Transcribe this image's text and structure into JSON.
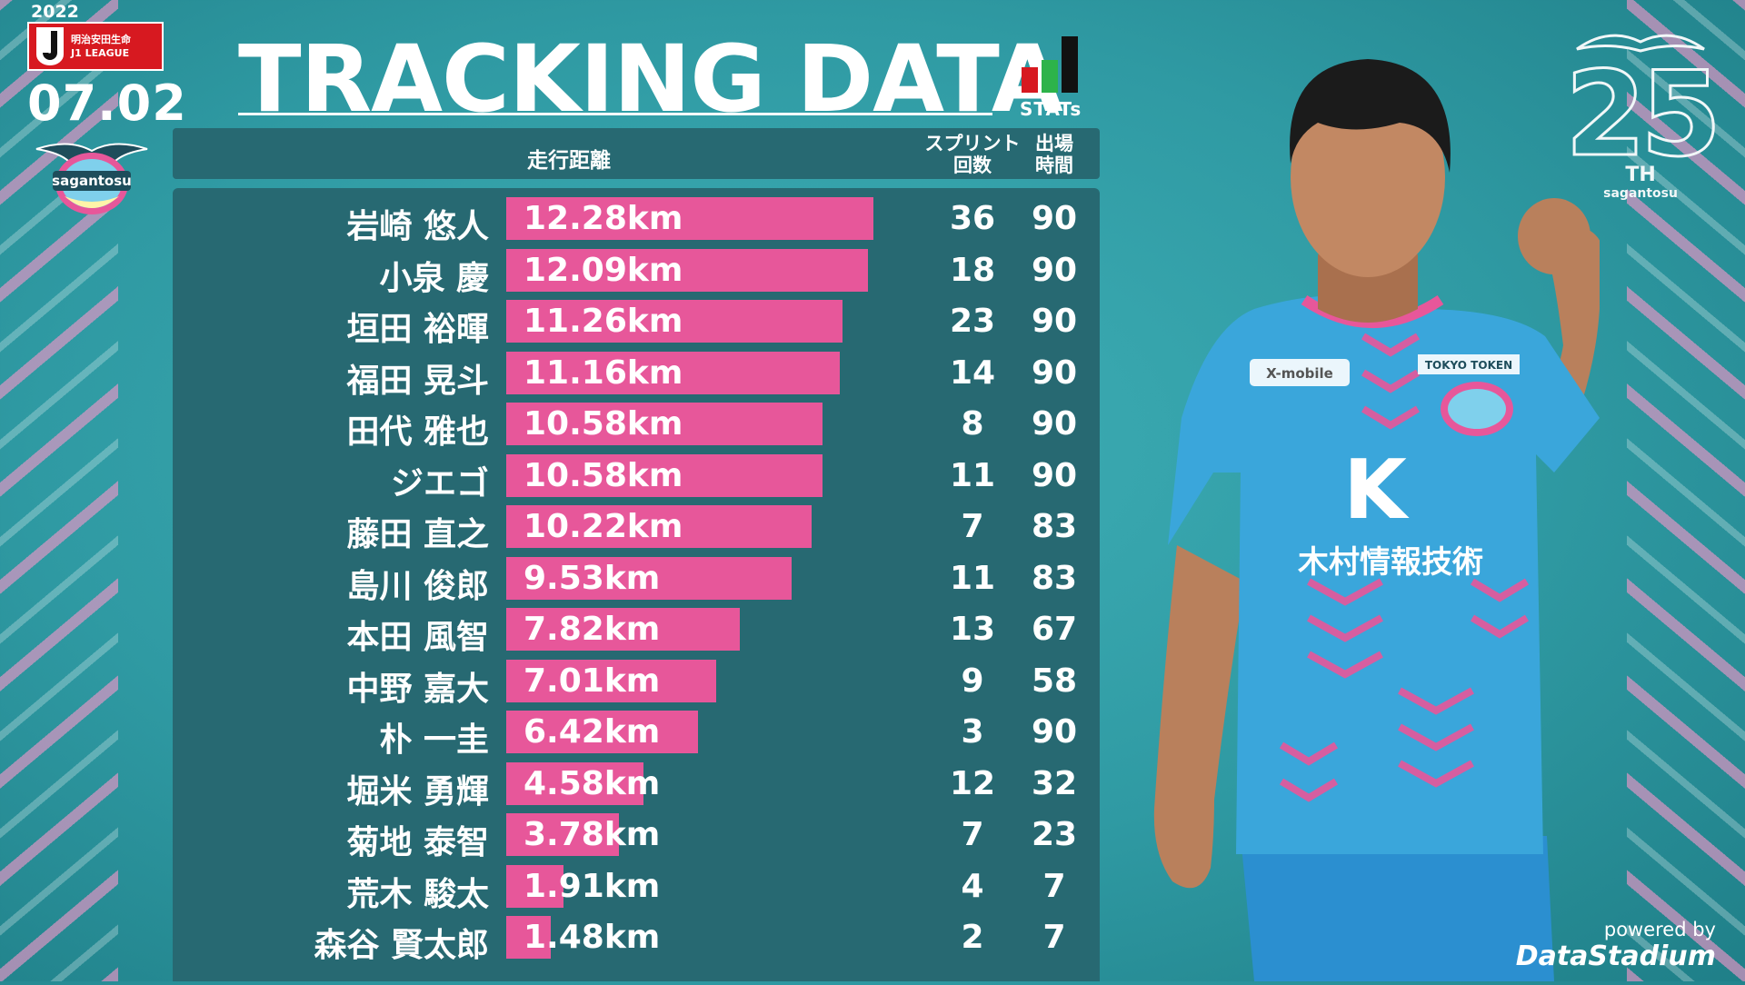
{
  "header": {
    "year": "2022",
    "league_sponsor": "明治安田生命",
    "league_name": "J1 LEAGUE",
    "date": "07.02",
    "club_name": "sagantosu",
    "title": "TRACKING DATA",
    "stats_label": "STATs"
  },
  "table": {
    "col_distance": "走行距離",
    "col_sprint_line1": "スプリント",
    "col_sprint_line2": "回数",
    "col_minutes_line1": "出場",
    "col_minutes_line2": "時間"
  },
  "chart_data": {
    "type": "bar",
    "orientation": "horizontal",
    "unit": "km",
    "categories": [
      "岩崎 悠人",
      "小泉 慶",
      "垣田 裕暉",
      "福田 晃斗",
      "田代 雅也",
      "ジエゴ",
      "藤田 直之",
      "島川 俊郎",
      "本田 風智",
      "中野 嘉大",
      "朴 一圭",
      "堀米 勇輝",
      "菊地 泰智",
      "荒木 駿太",
      "森谷 賢太郎"
    ],
    "values": [
      12.28,
      12.09,
      11.26,
      11.16,
      10.58,
      10.58,
      10.22,
      9.53,
      7.82,
      7.01,
      6.42,
      4.58,
      3.78,
      1.91,
      1.48
    ],
    "labels": [
      "12.28km",
      "12.09km",
      "11.26km",
      "11.16km",
      "10.58km",
      "10.58km",
      "10.22km",
      "9.53km",
      "7.82km",
      "7.01km",
      "6.42km",
      "4.58km",
      "3.78km",
      "1.91km",
      "1.48km"
    ],
    "sprints": [
      "36",
      "18",
      "23",
      "14",
      "8",
      "11",
      "7",
      "11",
      "13",
      "9",
      "3",
      "12",
      "7",
      "4",
      "2"
    ],
    "minutes": [
      "90",
      "90",
      "90",
      "90",
      "90",
      "90",
      "83",
      "83",
      "67",
      "58",
      "90",
      "32",
      "23",
      "7",
      "7"
    ],
    "bar_color": "#e7579a"
  },
  "emblem": {
    "number": "25",
    "suffix": "TH",
    "club": "sagantosu"
  },
  "player_jersey": {
    "sponsor_front": "木村情報技術",
    "sponsor_sleeve": "X-mobile",
    "sponsor_chest": "TOKYO TOKEN",
    "color": "#3aa6db"
  },
  "powered": {
    "line1": "powered by",
    "line2": "DataStadium"
  }
}
